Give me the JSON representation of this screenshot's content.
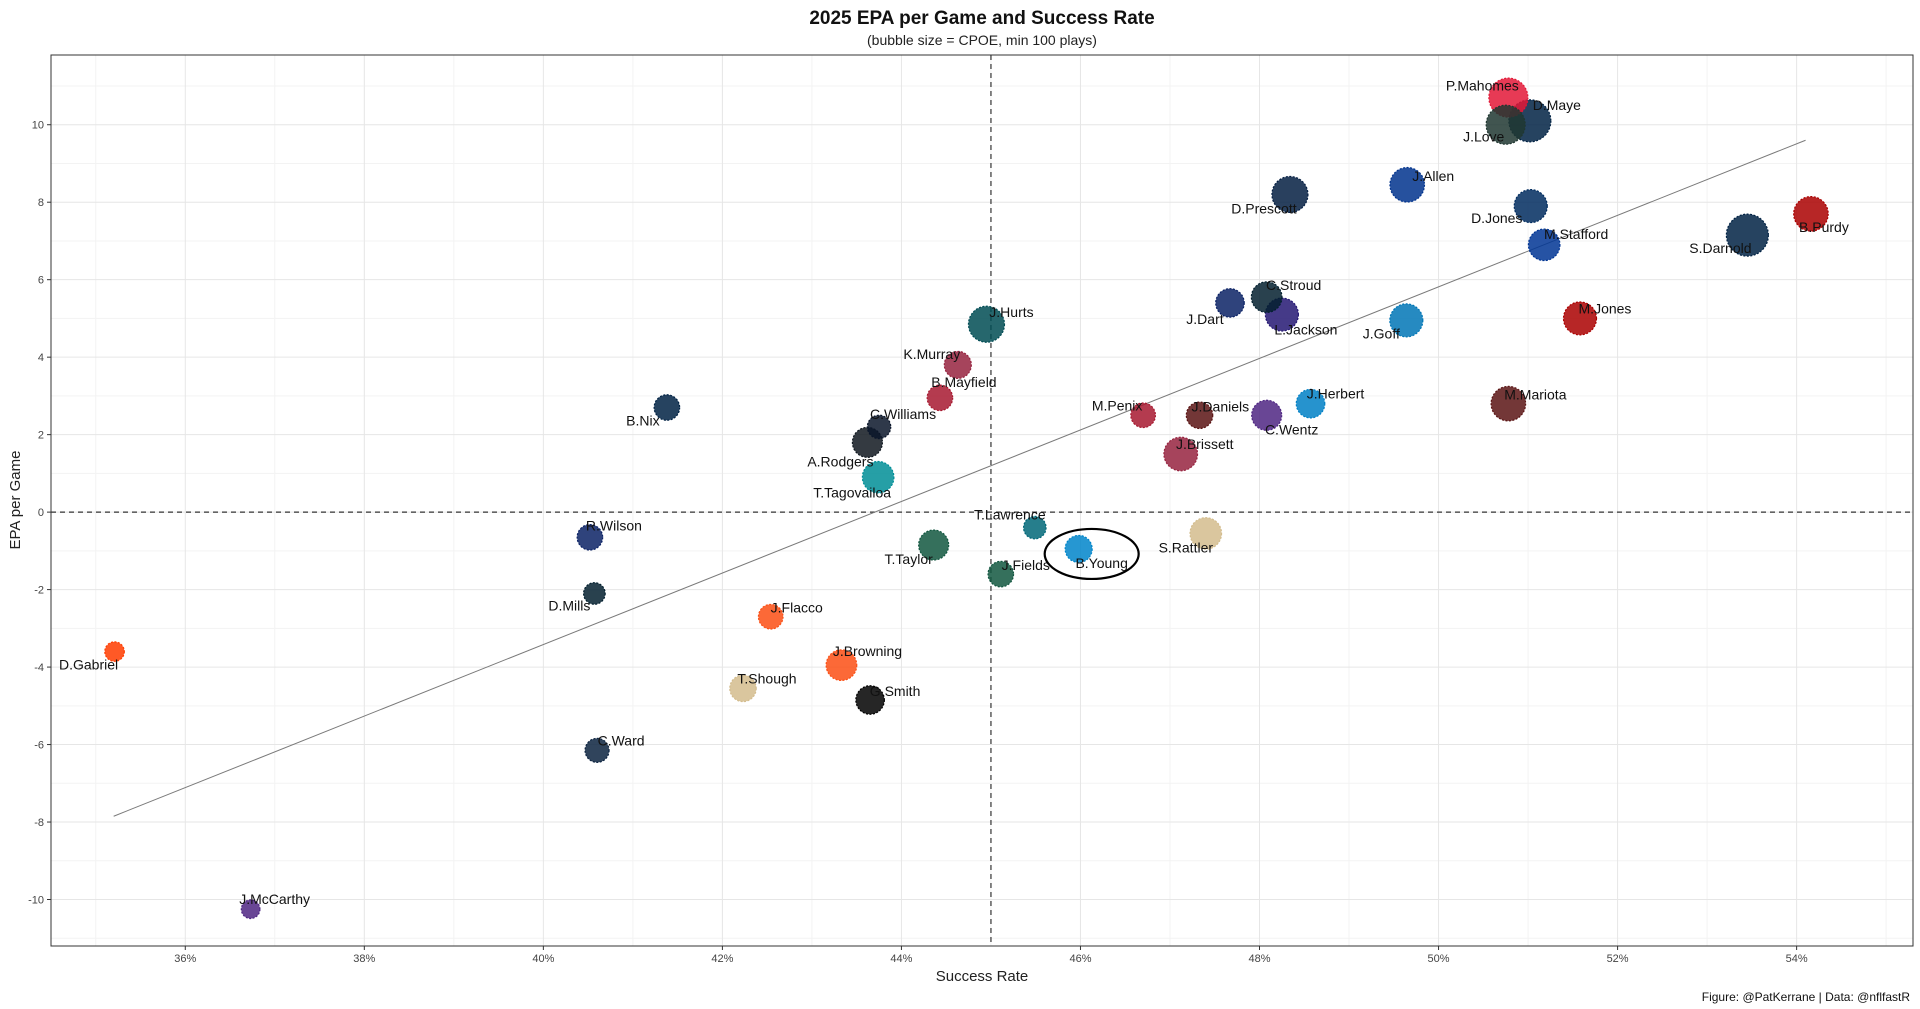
{
  "chart_data": {
    "type": "scatter",
    "title": "2025 EPA per Game and Success Rate",
    "subtitle": "(bubble size = CPOE, min 100 plays)",
    "xlabel": "Success Rate",
    "ylabel": "EPA per Game",
    "caption": "Figure: @PatKerrane | Data: @nflfastR",
    "xlim": [
      0.345,
      0.553
    ],
    "ylim": [
      -11.2,
      11.8
    ],
    "x_ticks": [
      0.36,
      0.38,
      0.4,
      0.42,
      0.44,
      0.46,
      0.48,
      0.5,
      0.52,
      0.54
    ],
    "x_tick_labels": [
      "36%",
      "38%",
      "40%",
      "42%",
      "44%",
      "46%",
      "48%",
      "50%",
      "52%",
      "54%"
    ],
    "y_ticks": [
      -10,
      -8,
      -6,
      -4,
      -2,
      0,
      2,
      4,
      6,
      8,
      10
    ],
    "y_tick_labels": [
      "-10",
      "-8",
      "-6",
      "-4",
      "-2",
      "0",
      "2",
      "4",
      "6",
      "8",
      "10"
    ],
    "grid": true,
    "reference_lines": {
      "x": 0.45,
      "y": 0
    },
    "trend_line": {
      "x": [
        0.352,
        0.541
      ],
      "y": [
        -7.85,
        9.6
      ]
    },
    "highlight": "B.Young",
    "points": [
      {
        "name": "P.Mahomes",
        "x": 0.5078,
        "y": 10.7,
        "size": 0.9,
        "color": "#E31837"
      },
      {
        "name": "D.Maye",
        "x": 0.5102,
        "y": 10.1,
        "size": 1.0,
        "color": "#002244"
      },
      {
        "name": "J.Love",
        "x": 0.5075,
        "y": 10.0,
        "size": 0.9,
        "color": "#203731"
      },
      {
        "name": "J.Allen",
        "x": 0.4965,
        "y": 8.45,
        "size": 0.75,
        "color": "#00338D"
      },
      {
        "name": "D.Prescott",
        "x": 0.4834,
        "y": 8.2,
        "size": 0.8,
        "color": "#041E42"
      },
      {
        "name": "D.Jones",
        "x": 0.5103,
        "y": 7.9,
        "size": 0.7,
        "color": "#002C5F"
      },
      {
        "name": "B.Purdy",
        "x": 0.5416,
        "y": 7.7,
        "size": 0.75,
        "color": "#AA0000"
      },
      {
        "name": "M.Stafford",
        "x": 0.5118,
        "y": 6.9,
        "size": 0.65,
        "color": "#003594"
      },
      {
        "name": "S.Darnold",
        "x": 0.5345,
        "y": 7.15,
        "size": 1.0,
        "color": "#002244"
      },
      {
        "name": "C.Stroud",
        "x": 0.4808,
        "y": 5.55,
        "size": 0.62,
        "color": "#03202F"
      },
      {
        "name": "J.Dart",
        "x": 0.4767,
        "y": 5.4,
        "size": 0.55,
        "color": "#0B2265"
      },
      {
        "name": "L.Jackson",
        "x": 0.4825,
        "y": 5.1,
        "size": 0.7,
        "color": "#241773"
      },
      {
        "name": "J.Goff",
        "x": 0.4964,
        "y": 4.95,
        "size": 0.7,
        "color": "#0076B6"
      },
      {
        "name": "M.Jones",
        "x": 0.5158,
        "y": 5.0,
        "size": 0.7,
        "color": "#AA0000"
      },
      {
        "name": "J.Hurts",
        "x": 0.4495,
        "y": 4.85,
        "size": 0.8,
        "color": "#004C54"
      },
      {
        "name": "K.Murray",
        "x": 0.4463,
        "y": 3.8,
        "size": 0.5,
        "color": "#97233F"
      },
      {
        "name": "B.Mayfield",
        "x": 0.4443,
        "y": 2.95,
        "size": 0.45,
        "color": "#A71930"
      },
      {
        "name": "B.Nix",
        "x": 0.4138,
        "y": 2.7,
        "size": 0.45,
        "color": "#002244"
      },
      {
        "name": "J.Herbert",
        "x": 0.4857,
        "y": 2.8,
        "size": 0.55,
        "color": "#0080C6"
      },
      {
        "name": "M.Mariota",
        "x": 0.5078,
        "y": 2.8,
        "size": 0.75,
        "color": "#5A1414"
      },
      {
        "name": "M.Penix",
        "x": 0.467,
        "y": 2.5,
        "size": 0.42,
        "color": "#A71930"
      },
      {
        "name": "J.Daniels",
        "x": 0.4733,
        "y": 2.5,
        "size": 0.48,
        "color": "#5A1414"
      },
      {
        "name": "C.Wentz",
        "x": 0.4808,
        "y": 2.5,
        "size": 0.6,
        "color": "#4F2683"
      },
      {
        "name": "C.Williams",
        "x": 0.4375,
        "y": 2.2,
        "size": 0.38,
        "color": "#0B162A"
      },
      {
        "name": "A.Rodgers",
        "x": 0.4362,
        "y": 1.8,
        "size": 0.6,
        "color": "#101820"
      },
      {
        "name": "J.Brissett",
        "x": 0.4712,
        "y": 1.5,
        "size": 0.72,
        "color": "#97233F"
      },
      {
        "name": "T.Tagovailoa",
        "x": 0.4374,
        "y": 0.9,
        "size": 0.65,
        "color": "#008E97"
      },
      {
        "name": "T.Lawrence",
        "x": 0.4549,
        "y": -0.4,
        "size": 0.35,
        "color": "#006778"
      },
      {
        "name": "B.Young",
        "x": 0.4598,
        "y": -0.95,
        "size": 0.5,
        "color": "#0085CA"
      },
      {
        "name": "S.Rattler",
        "x": 0.474,
        "y": -0.55,
        "size": 0.65,
        "color": "#D3BC8D"
      },
      {
        "name": "R.Wilson",
        "x": 0.4052,
        "y": -0.65,
        "size": 0.45,
        "color": "#0B2265"
      },
      {
        "name": "T.Taylor",
        "x": 0.4436,
        "y": -0.85,
        "size": 0.6,
        "color": "#125740"
      },
      {
        "name": "J.Fields",
        "x": 0.4511,
        "y": -1.6,
        "size": 0.45,
        "color": "#125740"
      },
      {
        "name": "D.Mills",
        "x": 0.4057,
        "y": -2.1,
        "size": 0.32,
        "color": "#03202F"
      },
      {
        "name": "J.Flacco",
        "x": 0.4254,
        "y": -2.7,
        "size": 0.42,
        "color": "#FB4F14"
      },
      {
        "name": "D.Gabriel",
        "x": 0.3521,
        "y": -3.6,
        "size": 0.25,
        "color": "#FF3C00"
      },
      {
        "name": "J.Browning",
        "x": 0.4333,
        "y": -3.95,
        "size": 0.62,
        "color": "#FB4F14"
      },
      {
        "name": "T.Shough",
        "x": 0.4223,
        "y": -4.55,
        "size": 0.48,
        "color": "#D3BC8D"
      },
      {
        "name": "G.Smith",
        "x": 0.4365,
        "y": -4.85,
        "size": 0.55,
        "color": "#000000"
      },
      {
        "name": "C.Ward",
        "x": 0.406,
        "y": -6.15,
        "size": 0.4,
        "color": "#0C2340"
      },
      {
        "name": "J.McCarthy",
        "x": 0.3673,
        "y": -10.25,
        "size": 0.22,
        "color": "#4F2683"
      }
    ]
  }
}
